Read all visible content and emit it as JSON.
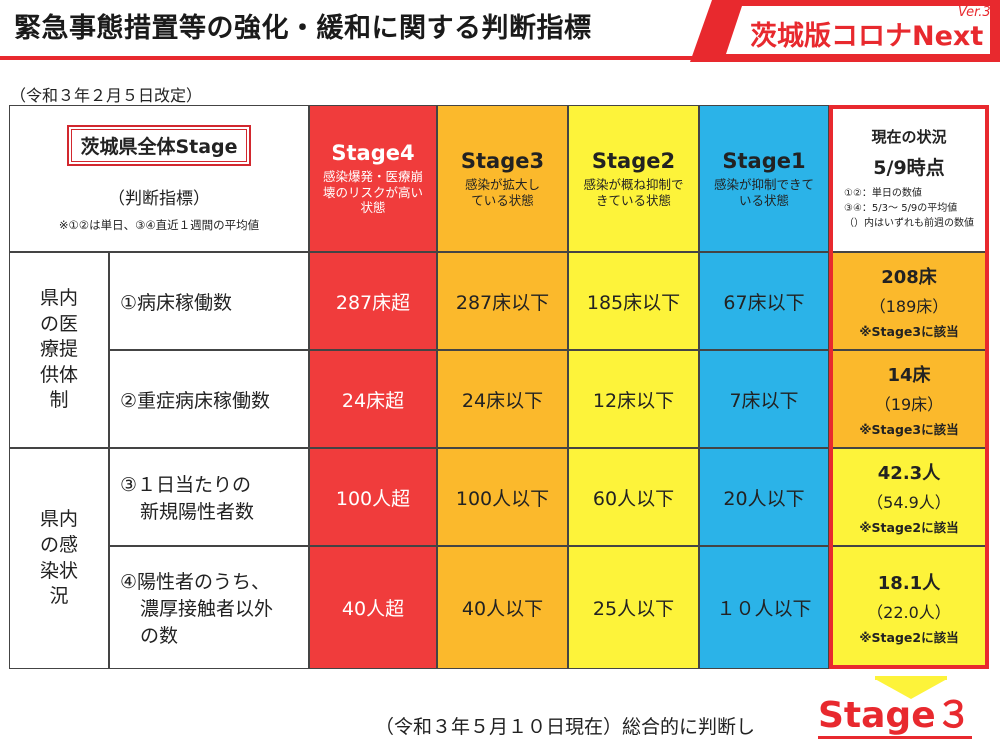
{
  "header": {
    "title": "緊急事態措置等の強化・緩和に関する判断指標",
    "brand": "茨城版コロナNext",
    "brand_version": "Ver.3"
  },
  "revised_note": "（令和３年２月５日改定）",
  "table": {
    "corner": {
      "badge": "茨城県全体Stage",
      "criteria": "（判断指標）",
      "note": "※①②は単日、③④直近１週間の平均値"
    },
    "stages": [
      {
        "name": "Stage4",
        "desc": "感染爆発・医療崩壊のリスクが高い状態",
        "color": "#f03c3c"
      },
      {
        "name": "Stage3",
        "desc": "感染が拡大している状態",
        "color": "#fbb92c"
      },
      {
        "name": "Stage2",
        "desc": "感染が概ね抑制できている状態",
        "color": "#fdf33a"
      },
      {
        "name": "Stage1",
        "desc": "感染が抑制できている状態",
        "color": "#2bb3e8"
      }
    ],
    "current_header": {
      "title": "現在の状況",
      "date": "5/9時点",
      "note1": "①②：単日の数値",
      "note2": "③④：5/3～ 5/9の平均値",
      "note3": "（）内はいずれも前週の数値"
    },
    "groups": [
      {
        "label": "県内の医療提供体制"
      },
      {
        "label": "県内の感染状況"
      }
    ],
    "rows": [
      {
        "indicator": "①病床稼働数",
        "stage4": "287床超",
        "stage3": "287床以下",
        "stage2": "185床以下",
        "stage1": "67床以下",
        "current": "208床",
        "previous": "（189床）",
        "status": "※Stage3に該当"
      },
      {
        "indicator": "②重症病床稼働数",
        "stage4": "24床超",
        "stage3": "24床以下",
        "stage2": "12床以下",
        "stage1": "7床以下",
        "current": "14床",
        "previous": "（19床）",
        "status": "※Stage3に該当"
      },
      {
        "indicator_line1": "③１日当たりの",
        "indicator_line2": "新規陽性者数",
        "stage4": "100人超",
        "stage3": "100人以下",
        "stage2": "60人以下",
        "stage1": "20人以下",
        "current": "42.3人",
        "previous": "（54.9人）",
        "status": "※Stage2に該当"
      },
      {
        "indicator_line1": "④陽性者のうち、",
        "indicator_line2": "濃厚接触者以外",
        "indicator_line3": "の数",
        "stage4": "40人超",
        "stage3": "40人以下",
        "stage2": "25人以下",
        "stage1": "１０人以下",
        "current": "18.1人",
        "previous": "（22.0人）",
        "status": "※Stage2に該当"
      }
    ]
  },
  "footer": {
    "text": "（令和３年５月１０日現在）総合的に判断し",
    "stage": "Stage３"
  }
}
